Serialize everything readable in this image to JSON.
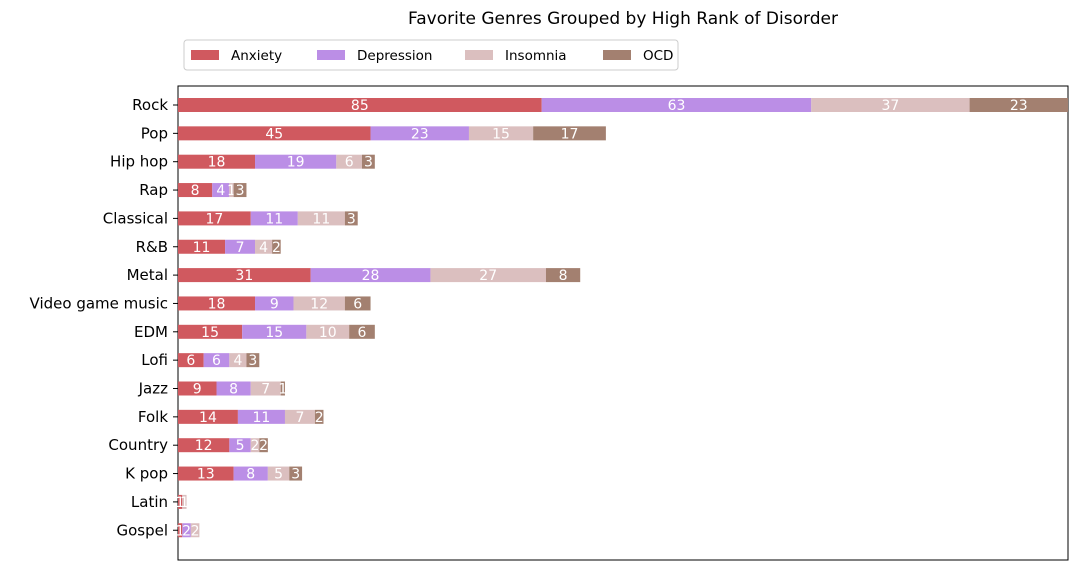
{
  "chart_data": {
    "type": "bar",
    "orientation": "horizontal",
    "stacked": true,
    "title": "Favorite Genres Grouped by High Rank of Disorder",
    "xlabel": "",
    "ylabel": "",
    "x_axis_visible": false,
    "grid": false,
    "legend_position": "top-left",
    "categories": [
      "Rock",
      "Pop",
      "Hip hop",
      "Rap",
      "Classical",
      "R&B",
      "Metal",
      "Video game music",
      "EDM",
      "Lofi",
      "Jazz",
      "Folk",
      "Country",
      "K pop",
      "Latin",
      "Gospel"
    ],
    "series": [
      {
        "name": "Anxiety",
        "color": "#d0595f",
        "values": [
          85,
          45,
          18,
          8,
          17,
          11,
          31,
          18,
          15,
          6,
          9,
          14,
          12,
          13,
          1,
          1
        ]
      },
      {
        "name": "Depression",
        "color": "#bb8ee6",
        "values": [
          63,
          23,
          19,
          4,
          11,
          7,
          28,
          9,
          15,
          6,
          8,
          11,
          5,
          8,
          0,
          2
        ]
      },
      {
        "name": "Insomnia",
        "color": "#dbbfbf",
        "values": [
          37,
          15,
          6,
          1,
          11,
          4,
          27,
          12,
          10,
          4,
          7,
          7,
          2,
          5,
          1,
          2
        ]
      },
      {
        "name": "OCD",
        "color": "#a38070",
        "values": [
          23,
          17,
          3,
          3,
          3,
          2,
          8,
          6,
          6,
          3,
          1,
          2,
          2,
          3,
          0,
          0
        ]
      }
    ],
    "xlim": [
      0,
      208
    ]
  }
}
